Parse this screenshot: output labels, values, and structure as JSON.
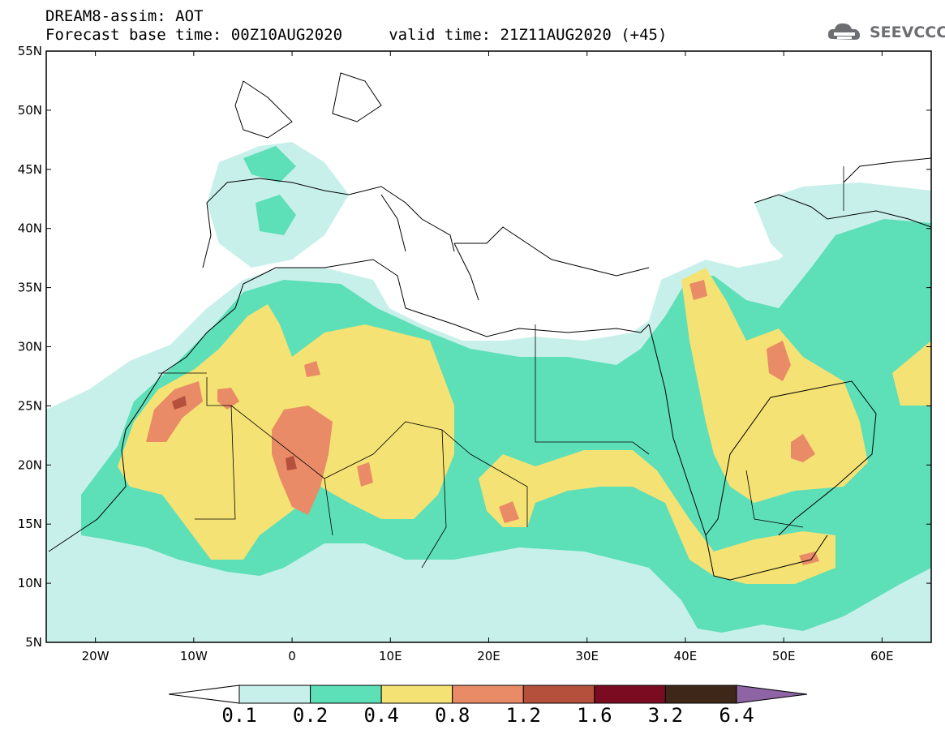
{
  "header": {
    "line1": "DREAM8-assim: AOT",
    "line2": "Forecast base time: 00Z10AUG2020     valid time: 21Z11AUG2020 (+45)"
  },
  "logo": {
    "text": "SEEVCCC",
    "icon": "cloud-icon"
  },
  "axes": {
    "lat_labels": [
      "55N",
      "50N",
      "45N",
      "40N",
      "35N",
      "30N",
      "25N",
      "20N",
      "15N",
      "10N",
      "5N"
    ],
    "lon_labels": [
      "20W",
      "10W",
      "0",
      "10E",
      "20E",
      "30E",
      "40E",
      "50E",
      "60E"
    ],
    "lat_range": [
      5,
      55
    ],
    "lon_range": [
      -25,
      65
    ]
  },
  "colorbar": {
    "levels": [
      "0.1",
      "0.2",
      "0.4",
      "0.8",
      "1.2",
      "1.6",
      "3.2",
      "6.4"
    ],
    "colors": [
      "#ffffff",
      "#c8f0ea",
      "#5ddfb8",
      "#f5e274",
      "#e98b66",
      "#b5503d",
      "#7a0b21",
      "#3e2718",
      "#8e64a4"
    ]
  },
  "colors": {
    "coast": "#000000",
    "bg": "#ffffff"
  }
}
